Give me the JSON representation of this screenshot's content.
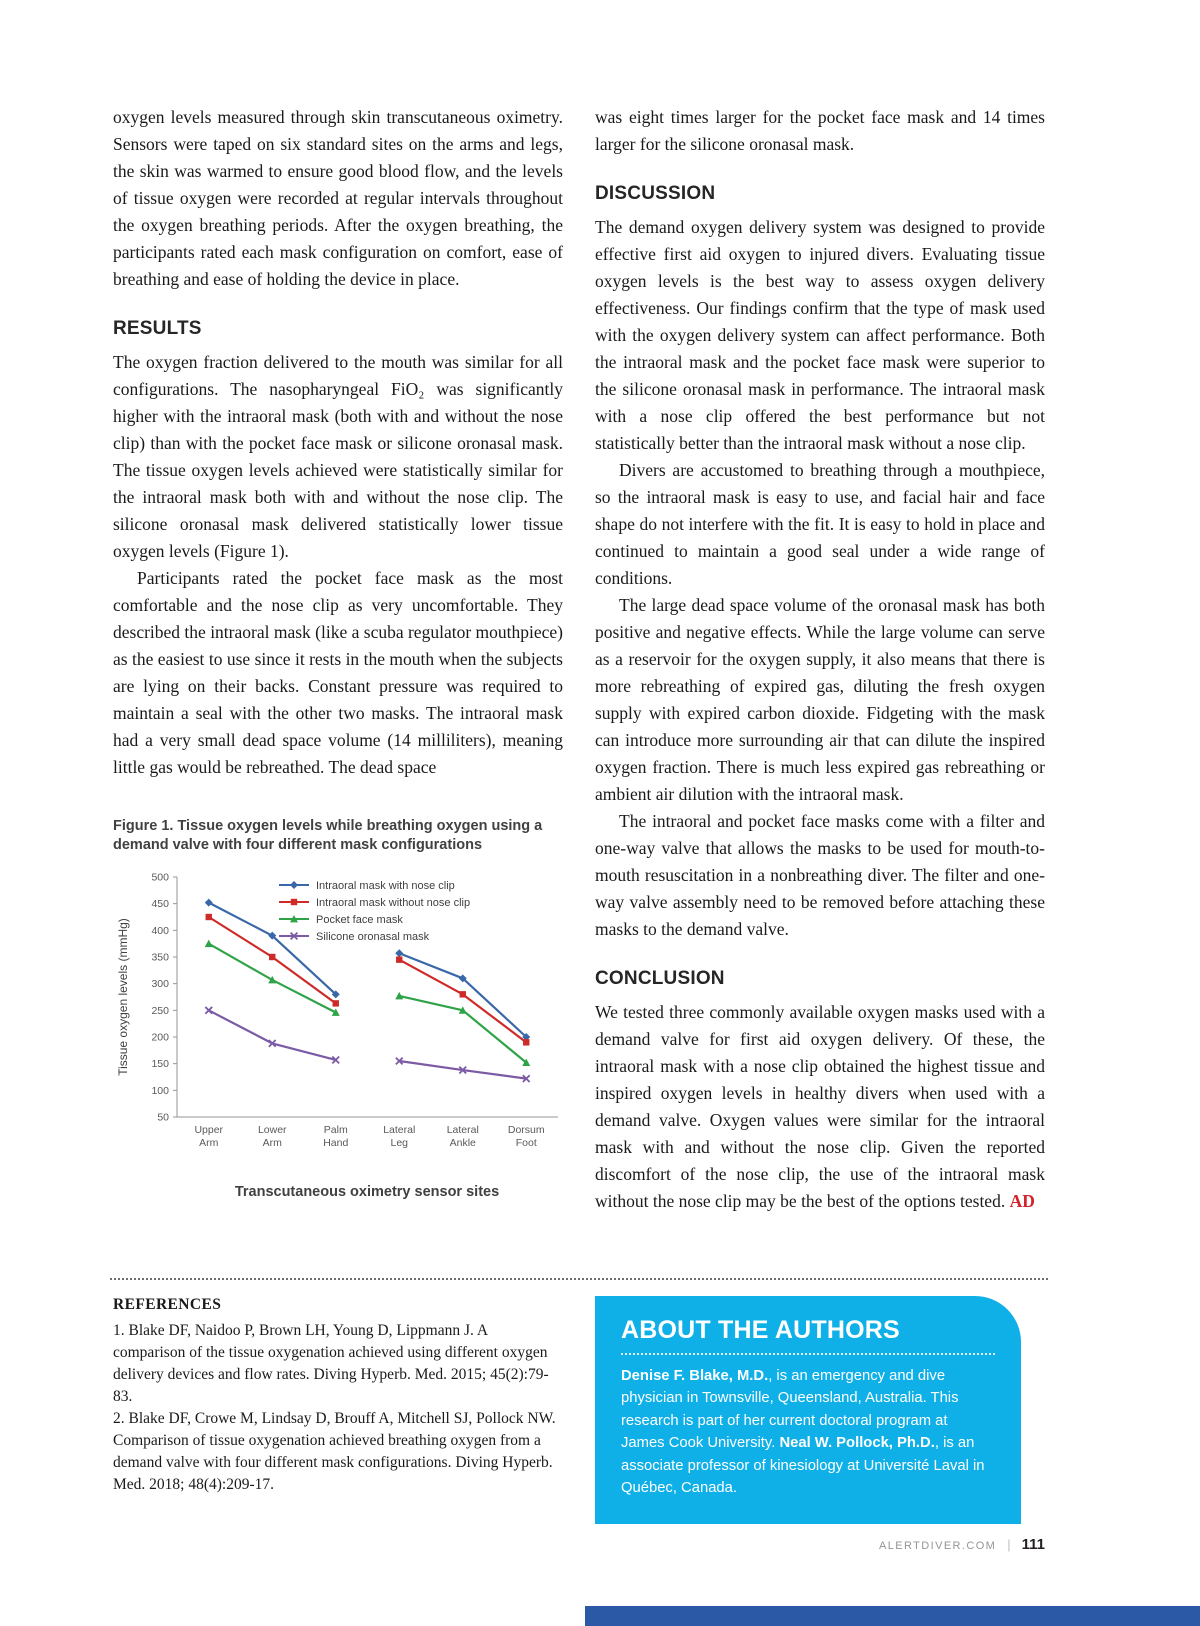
{
  "page": {
    "footer": {
      "site": "ALERTDIVER.COM",
      "page_number": "111"
    }
  },
  "colors": {
    "about_box": "#0FB0E8",
    "bottom_bar": "#2B59A5",
    "ad_mark": "#D2232A",
    "heading_text": "#262626",
    "axis_gray": "#939598",
    "tick_text": "#58595B"
  },
  "left_column": {
    "intro_paragraph": "oxygen levels measured through skin transcutaneous oximetry. Sensors were taped on six standard sites on the arms and legs, the skin was warmed to ensure good blood flow, and the levels of tissue oxygen were recorded at regular intervals throughout the oxygen breathing periods. After the oxygen breathing, the participants rated each mask configuration on comfort, ease of breathing and ease of holding the device in place.",
    "results_heading": "RESULTS",
    "results_para1": "The oxygen fraction delivered to the mouth was similar for all configurations. The nasopharyngeal FiO₂ was significantly higher with the intraoral mask (both with and without the nose clip) than with the pocket face mask or silicone oronasal mask. The tissue oxygen levels achieved were statistically similar for the intraoral mask both with and without the nose clip. The silicone oronasal mask delivered statistically lower tissue oxygen levels (Figure 1).",
    "results_para2": "Participants rated the pocket face mask as the most comfortable and the nose clip as very uncomfortable. They described the intraoral mask (like a scuba regulator mouthpiece) as the easiest to use since it rests in the mouth when the subjects are lying on their backs. Constant pressure was required to maintain a seal with the other two masks. The intraoral mask had a very small dead space volume (14 milliliters), meaning little gas would be rebreathed. The dead space"
  },
  "figure": {
    "caption": "Figure 1. Tissue oxygen levels while breathing oxygen using a demand valve with four different mask configurations",
    "xaxis_title": "Transcutaneous oximetry sensor sites"
  },
  "chart_data": {
    "type": "line",
    "title": "Figure 1. Tissue oxygen levels while breathing oxygen using a demand valve with four different mask configurations",
    "xlabel": "Transcutaneous oximetry sensor sites",
    "ylabel": "Tissue oxygen levels (mmHg)",
    "ylim": [
      50,
      500
    ],
    "ytick_step": 50,
    "grid": false,
    "legend_position": "top-right-inside",
    "categories": [
      [
        "Upper",
        "Arm"
      ],
      [
        "Lower",
        "Arm"
      ],
      [
        "Palm",
        "Hand"
      ],
      [
        "Lateral",
        "Leg"
      ],
      [
        "Lateral",
        "Ankle"
      ],
      [
        "Dorsum",
        "Foot"
      ]
    ],
    "segments": [
      [
        0,
        1,
        2
      ],
      [
        3,
        4,
        5
      ]
    ],
    "series": [
      {
        "name": "Intraoral mask with nose clip",
        "color": "#3A67A8",
        "marker": "diamond",
        "values": [
          452,
          390,
          280,
          357,
          310,
          200
        ]
      },
      {
        "name": "Intraoral mask without nose clip",
        "color": "#CE2A27",
        "marker": "square",
        "values": [
          425,
          350,
          263,
          345,
          280,
          190
        ]
      },
      {
        "name": "Pocket face mask",
        "color": "#2FA347",
        "marker": "triangle",
        "values": [
          375,
          307,
          246,
          277,
          250,
          152
        ]
      },
      {
        "name": "Silicone oronasal mask",
        "color": "#7B5AA6",
        "marker": "x",
        "values": [
          250,
          188,
          157,
          155,
          138,
          122
        ]
      }
    ]
  },
  "right_column": {
    "cont_paragraph": "was eight times larger for the pocket face mask and 14 times larger for the silicone oronasal mask.",
    "discussion_heading": "DISCUSSION",
    "discussion_para1": "The demand oxygen delivery system was designed to provide effective first aid oxygen to injured divers. Evaluating tissue oxygen levels is the best way to assess oxygen delivery effectiveness. Our findings confirm that the type of mask used with the oxygen delivery system can affect performance. Both the intraoral mask and the pocket face mask were superior to the silicone oronasal mask in performance. The intraoral mask with a nose clip offered the best performance but not statistically better than the intraoral mask without a nose clip.",
    "discussion_para2": "Divers are accustomed to breathing through a mouthpiece, so the intraoral mask is easy to use, and facial hair and face shape do not interfere with the fit. It is easy to hold in place and continued to maintain a good seal under a wide range of conditions.",
    "discussion_para3": "The large dead space volume of the oronasal mask has both positive and negative effects. While the large volume can serve as a reservoir for the oxygen supply, it also means that there is more rebreathing of expired gas, diluting the fresh oxygen supply with expired carbon dioxide. Fidgeting with the mask can introduce more surrounding air that can dilute the inspired oxygen fraction. There is much less expired gas rebreathing or ambient air dilution with the intraoral mask.",
    "discussion_para4": "The intraoral and pocket face masks come with a filter and one-way valve that allows the masks to be used for mouth-to-mouth resuscitation in a nonbreathing diver. The filter and one-way valve assembly need to be removed before attaching these masks to the demand valve.",
    "conclusion_heading": "CONCLUSION",
    "conclusion_para": "We tested three commonly available oxygen masks used with a demand valve for first aid oxygen delivery. Of these, the intraoral mask with a nose clip obtained the highest tissue and inspired oxygen levels in healthy divers when used with a demand valve. Oxygen values were similar for the intraoral mask with and without the nose clip. Given the reported discomfort of the nose clip, the use of the intraoral mask without the nose clip may be the best of the options tested.",
    "ad_mark": "AD"
  },
  "references": {
    "heading": "REFERENCES",
    "items": [
      "1. Blake DF, Naidoo P, Brown LH, Young D, Lippmann J. A comparison of the tissue oxygenation achieved using different oxygen delivery devices and flow rates. Diving Hyperb. Med. 2015; 45(2):79-83.",
      "2. Blake DF, Crowe M, Lindsay D, Brouff A, Mitchell SJ, Pollock NW. Comparison of tissue oxygenation achieved breathing oxygen from a demand valve with four different mask configurations. Diving Hyperb. Med. 2018; 48(4):209-17."
    ]
  },
  "about_authors": {
    "heading": "ABOUT THE AUTHORS",
    "segments": [
      {
        "t": "Denise F. Blake, M.D.",
        "b": true
      },
      {
        "t": ", is an emergency and dive physician in Townsville, Queensland, Australia. This research is part of her current doctoral program at James Cook University. ",
        "b": false
      },
      {
        "t": "Neal W. Pollock, Ph.D.",
        "b": true
      },
      {
        "t": ", is an associate professor of kinesiology at Université Laval in Québec, Canada.",
        "b": false
      }
    ]
  }
}
